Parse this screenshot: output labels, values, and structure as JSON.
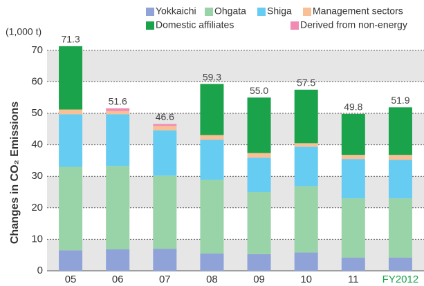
{
  "chart_data": {
    "type": "stacked_bar",
    "y_label": "Changes in CO₂ Emissions",
    "unit": "(1,000 t)",
    "categories": [
      "05",
      "06",
      "07",
      "08",
      "09",
      "10",
      "11",
      "FY2012"
    ],
    "category_label_colors": [
      "#333333",
      "#333333",
      "#333333",
      "#333333",
      "#333333",
      "#333333",
      "#333333",
      "#1aa34a"
    ],
    "series": [
      {
        "name": "Yokkaichi",
        "color": "#8fa3d8",
        "values": [
          6.5,
          6.8,
          7.0,
          5.5,
          5.3,
          5.8,
          4.2,
          4.2
        ]
      },
      {
        "name": "Ohgata",
        "color": "#99d3a8",
        "values": [
          26.5,
          26.5,
          23.2,
          23.4,
          19.7,
          21.1,
          18.8,
          18.8
        ]
      },
      {
        "name": "Shiga",
        "color": "#66ccf2",
        "values": [
          16.7,
          16.4,
          14.4,
          12.7,
          10.9,
          12.5,
          12.5,
          12.2
        ]
      },
      {
        "name": "Management sectors",
        "color": "#f9bf95",
        "values": [
          1.5,
          1.0,
          1.4,
          1.5,
          1.5,
          1.1,
          1.3,
          1.6
        ]
      },
      {
        "name": "Domestic affiliates",
        "color": "#1aa34a",
        "values": [
          20.1,
          0,
          0,
          16.2,
          17.6,
          17.0,
          13.0,
          15.1
        ]
      },
      {
        "name": "Derived from non-energy",
        "color": "#f08cb3",
        "values": [
          0,
          0.9,
          0.6,
          0,
          0,
          0,
          0,
          0
        ]
      }
    ],
    "totals": [
      71.3,
      51.6,
      46.6,
      59.3,
      55,
      57.5,
      49.8,
      51.9
    ],
    "total_labels": [
      "71.3",
      "51.6",
      "46.6",
      "59.3",
      "55.0",
      "57.5",
      "49.8",
      "51.9"
    ],
    "ylim": [
      0,
      75
    ],
    "yticks": [
      0,
      10,
      20,
      30,
      40,
      50,
      60,
      70
    ],
    "grid": true,
    "band_color": "#e6e6e6",
    "legend": "top-right"
  }
}
